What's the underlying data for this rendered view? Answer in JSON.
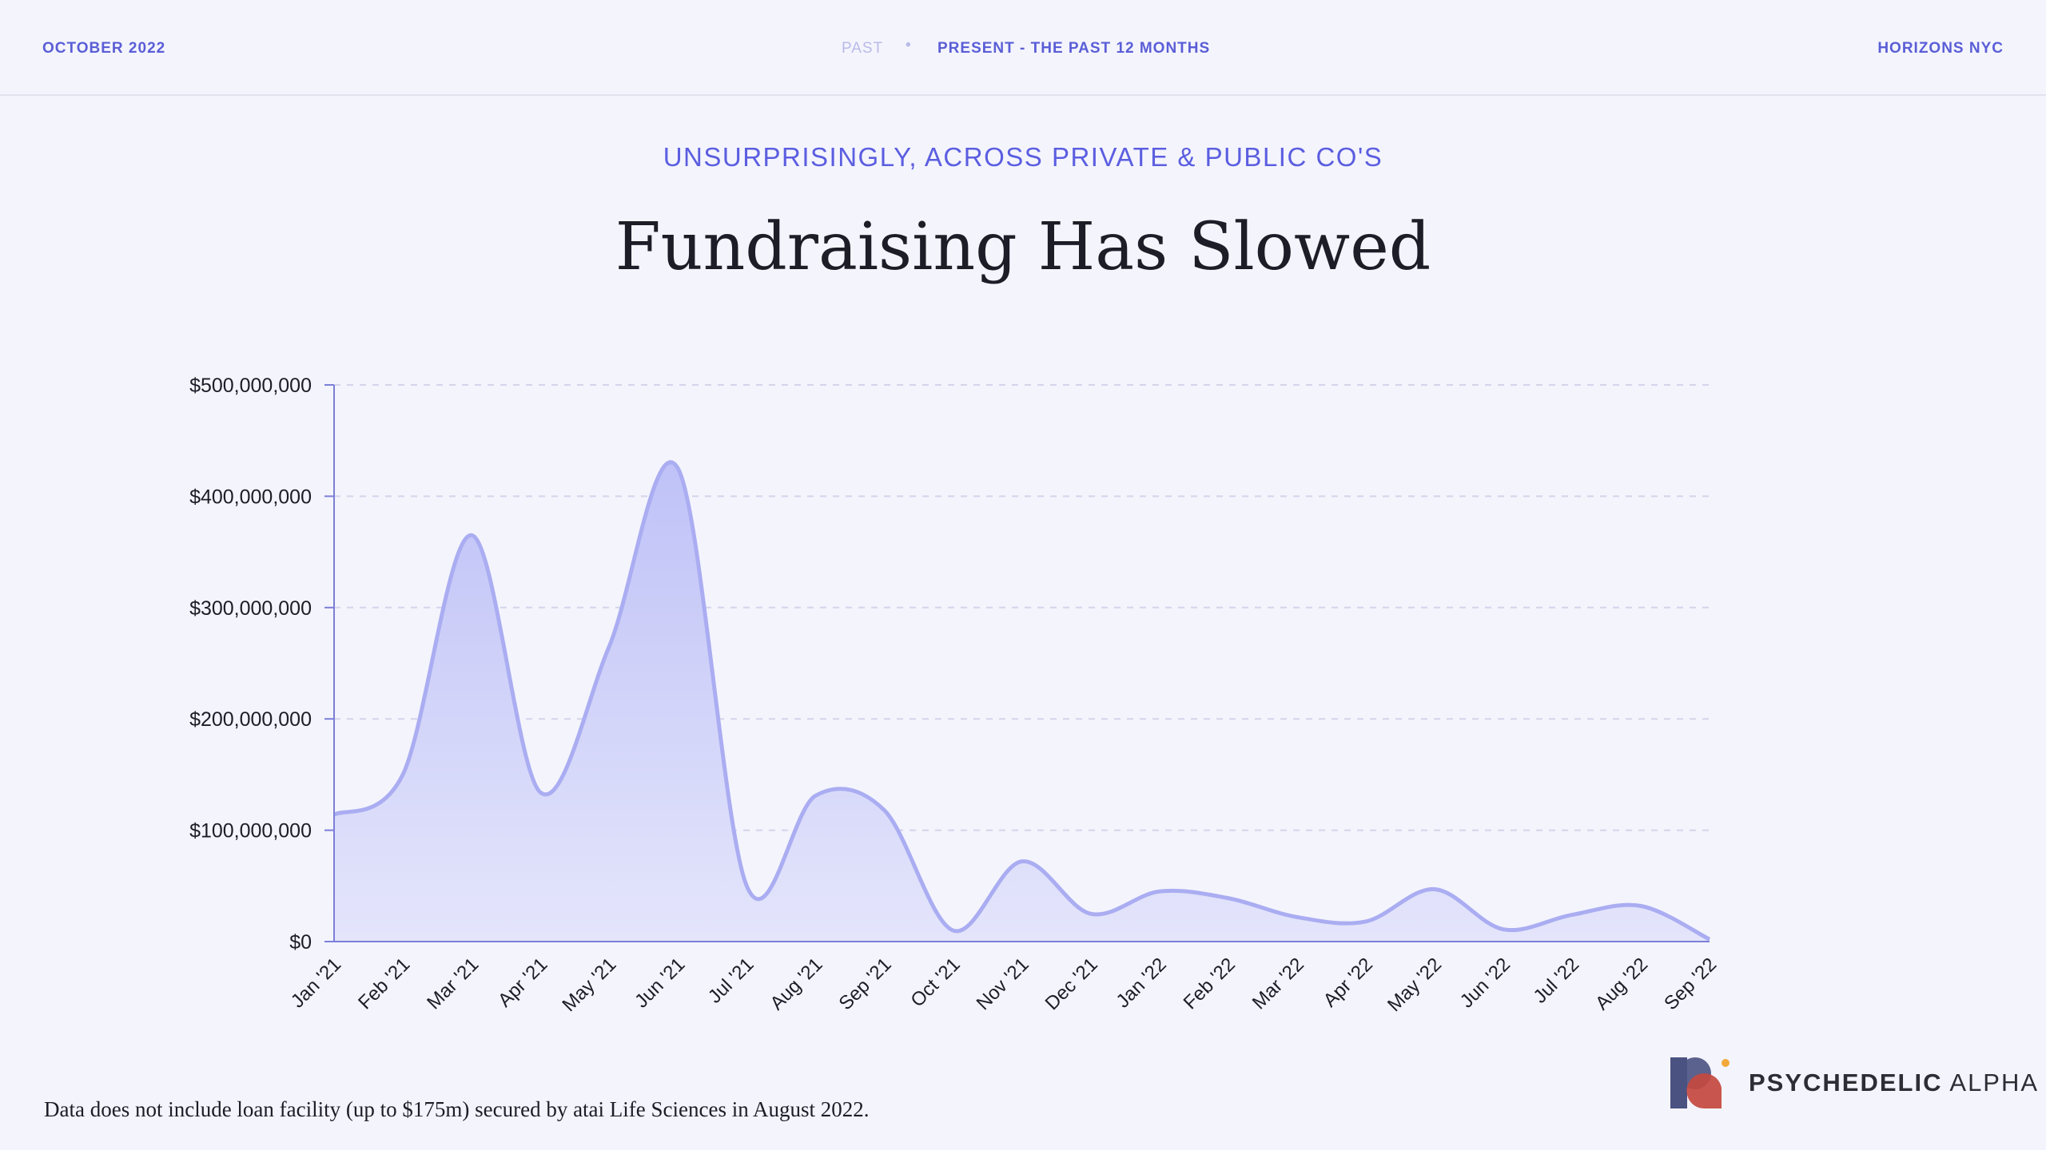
{
  "header": {
    "date": "OCTOBER 2022",
    "past": "PAST",
    "separator": "•",
    "present": "PRESENT - THE PAST 12 MONTHS",
    "event": "HORIZONS NYC"
  },
  "subtitle": "UNSURPRISINGLY, ACROSS PRIVATE & PUBLIC CO'S",
  "footnote": "Data does not include loan facility (up to $175m) secured by atai Life Sciences in August 2022.",
  "logo": {
    "word1": "PSYCHEDELIC",
    "word2": "ALPHA"
  },
  "colors": {
    "accent": "#5b5ee0",
    "line": "#a9acf0",
    "fill": "#c5c8f8",
    "axis": "#7c7fd8"
  },
  "chart_data": {
    "type": "area",
    "title": "Fundraising Has Slowed",
    "xlabel": "",
    "ylabel": "",
    "ylim": [
      0,
      500000000
    ],
    "grid": true,
    "yticks": [
      0,
      100000000,
      200000000,
      300000000,
      400000000,
      500000000
    ],
    "ytick_labels": [
      "$0",
      "$100,000,000",
      "$200,000,000",
      "$300,000,000",
      "$400,000,000",
      "$500,000,000"
    ],
    "categories": [
      "Jan '21",
      "Feb '21",
      "Mar '21",
      "Apr '21",
      "May '21",
      "Jun '21",
      "Jul '21",
      "Aug '21",
      "Sep '21",
      "Oct '21",
      "Nov '21",
      "Dec '21",
      "Jan '22",
      "Feb '22",
      "Mar '22",
      "Apr '22",
      "May '22",
      "Jun '22",
      "Jul '22",
      "Aug '22",
      "Sep '22"
    ],
    "values": [
      114000000,
      150000000,
      365000000,
      134000000,
      265000000,
      425000000,
      50000000,
      131000000,
      118000000,
      10000000,
      72000000,
      25000000,
      45000000,
      39000000,
      22000000,
      18000000,
      47000000,
      11000000,
      24000000,
      32000000,
      2000000
    ]
  }
}
